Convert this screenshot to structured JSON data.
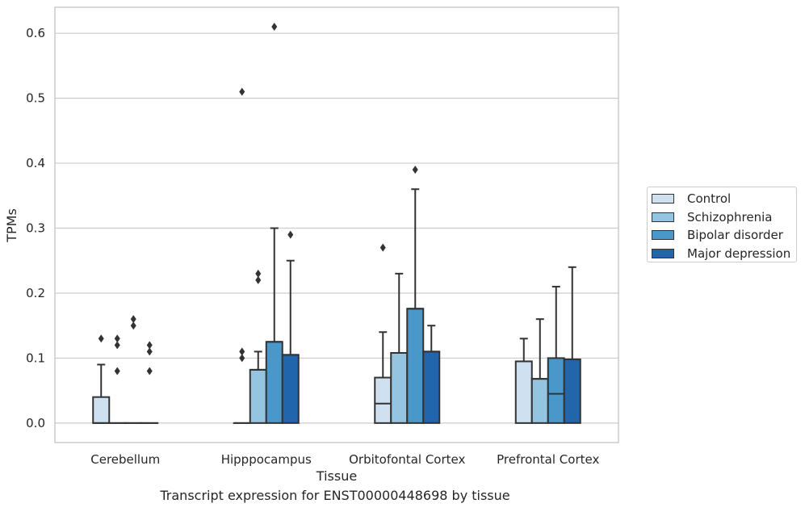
{
  "chart_data": {
    "type": "box",
    "xlabel": "Tissue",
    "ylabel": "TPMs",
    "ylim": [
      -0.03,
      0.64
    ],
    "yticks": [
      0.0,
      0.1,
      0.2,
      0.3,
      0.4,
      0.5,
      0.6
    ],
    "ytick_labels": [
      "0.0",
      "0.1",
      "0.2",
      "0.3",
      "0.4",
      "0.5",
      "0.6"
    ],
    "grid": true,
    "legend_position": "right",
    "categories": [
      "Cerebellum",
      "Hipppocampus",
      "Orbitofontal Cortex",
      "Prefrontal Cortex"
    ],
    "series": [
      {
        "name": "Control",
        "color": "#cfe0f1",
        "boxes": [
          {
            "q1": 0.0,
            "median": 0.0,
            "q3": 0.04,
            "whisker_low": 0.0,
            "whisker_high": 0.09,
            "outliers": [
              0.13
            ]
          },
          {
            "q1": 0.0,
            "median": 0.0,
            "q3": 0.0,
            "whisker_low": 0.0,
            "whisker_high": 0.0,
            "outliers": [
              0.51,
              0.11,
              0.1
            ]
          },
          {
            "q1": 0.0,
            "median": 0.03,
            "q3": 0.07,
            "whisker_low": 0.0,
            "whisker_high": 0.14,
            "outliers": [
              0.27
            ]
          },
          {
            "q1": 0.0,
            "median": 0.095,
            "q3": 0.095,
            "whisker_low": 0.0,
            "whisker_high": 0.13,
            "outliers": []
          }
        ]
      },
      {
        "name": "Schizophrenia",
        "color": "#94c4df",
        "boxes": [
          {
            "q1": 0.0,
            "median": 0.0,
            "q3": 0.0,
            "whisker_low": 0.0,
            "whisker_high": 0.0,
            "outliers": [
              0.13,
              0.12,
              0.08
            ]
          },
          {
            "q1": 0.0,
            "median": 0.082,
            "q3": 0.082,
            "whisker_low": 0.0,
            "whisker_high": 0.11,
            "outliers": [
              0.23,
              0.22
            ]
          },
          {
            "q1": 0.0,
            "median": 0.108,
            "q3": 0.108,
            "whisker_low": 0.0,
            "whisker_high": 0.23,
            "outliers": []
          },
          {
            "q1": 0.0,
            "median": 0.068,
            "q3": 0.068,
            "whisker_low": 0.0,
            "whisker_high": 0.16,
            "outliers": []
          }
        ]
      },
      {
        "name": "Bipolar disorder",
        "color": "#4a98c9",
        "boxes": [
          {
            "q1": 0.0,
            "median": 0.0,
            "q3": 0.0,
            "whisker_low": 0.0,
            "whisker_high": 0.0,
            "outliers": [
              0.16,
              0.15
            ]
          },
          {
            "q1": 0.0,
            "median": 0.125,
            "q3": 0.125,
            "whisker_low": 0.0,
            "whisker_high": 0.3,
            "outliers": [
              0.61
            ]
          },
          {
            "q1": 0.0,
            "median": 0.176,
            "q3": 0.176,
            "whisker_low": 0.0,
            "whisker_high": 0.36,
            "outliers": [
              0.39
            ]
          },
          {
            "q1": 0.0,
            "median": 0.045,
            "q3": 0.1,
            "whisker_low": 0.0,
            "whisker_high": 0.21,
            "outliers": []
          }
        ]
      },
      {
        "name": "Major depression",
        "color": "#2166ac",
        "boxes": [
          {
            "q1": 0.0,
            "median": 0.0,
            "q3": 0.0,
            "whisker_low": 0.0,
            "whisker_high": 0.0,
            "outliers": [
              0.12,
              0.11,
              0.08
            ]
          },
          {
            "q1": 0.0,
            "median": 0.105,
            "q3": 0.105,
            "whisker_low": 0.0,
            "whisker_high": 0.25,
            "outliers": [
              0.29
            ]
          },
          {
            "q1": 0.0,
            "median": 0.11,
            "q3": 0.11,
            "whisker_low": 0.0,
            "whisker_high": 0.15,
            "outliers": []
          },
          {
            "q1": 0.0,
            "median": 0.098,
            "q3": 0.098,
            "whisker_low": 0.0,
            "whisker_high": 0.24,
            "outliers": []
          }
        ]
      }
    ]
  },
  "plot_title": "Transcript expression for ENST00000448698 by tissue"
}
